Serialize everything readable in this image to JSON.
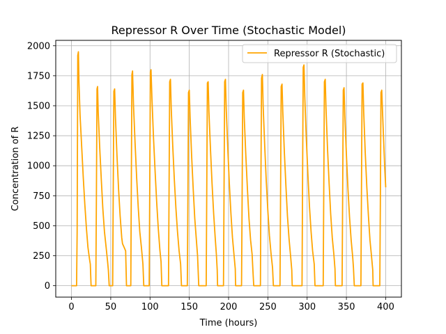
{
  "chart_data": {
    "type": "line",
    "title": "Repressor R Over Time (Stochastic Model)",
    "xlabel": "Time (hours)",
    "ylabel": "Concentration of R",
    "xlim": [
      -20,
      420
    ],
    "ylim": [
      -95,
      2045
    ],
    "xticks": [
      0,
      50,
      100,
      150,
      200,
      250,
      300,
      350,
      400
    ],
    "yticks": [
      0,
      250,
      500,
      750,
      1000,
      1250,
      1500,
      1750,
      2000
    ],
    "grid": true,
    "legend_position": "top-right",
    "series": [
      {
        "name": "Repressor R (Stochastic)",
        "color": "#ffa500",
        "points": [
          [
            0,
            0
          ],
          [
            6.5,
            0
          ],
          [
            7.2,
            450
          ],
          [
            8.0,
            1920
          ],
          [
            8.8,
            1950
          ],
          [
            9.5,
            1700
          ],
          [
            11,
            1420
          ],
          [
            13,
            1160
          ],
          [
            15,
            900
          ],
          [
            17,
            680
          ],
          [
            19,
            480
          ],
          [
            21,
            320
          ],
          [
            23,
            220
          ],
          [
            24,
            180
          ],
          [
            25,
            0
          ],
          [
            31,
            0
          ],
          [
            31.7,
            700
          ],
          [
            32.5,
            1640
          ],
          [
            33.2,
            1660
          ],
          [
            34,
            1450
          ],
          [
            36,
            1150
          ],
          [
            38,
            880
          ],
          [
            40,
            640
          ],
          [
            42,
            450
          ],
          [
            44,
            330
          ],
          [
            46,
            200
          ],
          [
            47,
            130
          ],
          [
            48,
            0
          ],
          [
            52.5,
            0
          ],
          [
            53.2,
            800
          ],
          [
            54,
            1620
          ],
          [
            55,
            1640
          ],
          [
            56,
            1400
          ],
          [
            58,
            1080
          ],
          [
            60,
            800
          ],
          [
            62,
            580
          ],
          [
            64,
            400
          ],
          [
            65,
            350
          ],
          [
            67,
            320
          ],
          [
            69,
            290
          ],
          [
            70,
            0
          ],
          [
            75.5,
            0
          ],
          [
            76.2,
            800
          ],
          [
            77,
            1760
          ],
          [
            77.8,
            1790
          ],
          [
            79,
            1500
          ],
          [
            81,
            1180
          ],
          [
            83,
            900
          ],
          [
            85,
            650
          ],
          [
            87,
            450
          ],
          [
            89,
            320
          ],
          [
            91,
            180
          ],
          [
            92,
            0
          ],
          [
            99,
            0
          ],
          [
            99.7,
            850
          ],
          [
            100.5,
            1780
          ],
          [
            101.3,
            1800
          ],
          [
            102.5,
            1550
          ],
          [
            104.5,
            1230
          ],
          [
            106.5,
            950
          ],
          [
            108.5,
            690
          ],
          [
            110.5,
            480
          ],
          [
            112.5,
            300
          ],
          [
            114,
            200
          ],
          [
            115,
            0
          ],
          [
            123.5,
            0
          ],
          [
            124.2,
            800
          ],
          [
            125,
            1700
          ],
          [
            126,
            1720
          ],
          [
            127,
            1480
          ],
          [
            129,
            1150
          ],
          [
            131,
            880
          ],
          [
            133,
            640
          ],
          [
            135,
            450
          ],
          [
            137,
            290
          ],
          [
            139,
            180
          ],
          [
            140,
            0
          ],
          [
            147.5,
            0
          ],
          [
            148.2,
            700
          ],
          [
            149,
            1610
          ],
          [
            150,
            1630
          ],
          [
            151,
            1400
          ],
          [
            153,
            1080
          ],
          [
            155,
            800
          ],
          [
            157,
            560
          ],
          [
            159,
            380
          ],
          [
            160.5,
            250
          ],
          [
            162,
            0
          ],
          [
            171.5,
            0
          ],
          [
            172.2,
            800
          ],
          [
            173,
            1690
          ],
          [
            174,
            1700
          ],
          [
            175,
            1450
          ],
          [
            177,
            1130
          ],
          [
            179,
            850
          ],
          [
            181,
            600
          ],
          [
            183,
            400
          ],
          [
            184.5,
            260
          ],
          [
            185.5,
            130
          ],
          [
            186,
            0
          ],
          [
            193.5,
            0
          ],
          [
            194.2,
            800
          ],
          [
            195,
            1700
          ],
          [
            196,
            1720
          ],
          [
            197,
            1480
          ],
          [
            199,
            1140
          ],
          [
            201,
            850
          ],
          [
            203,
            600
          ],
          [
            205,
            400
          ],
          [
            207,
            250
          ],
          [
            208.5,
            140
          ],
          [
            209,
            0
          ],
          [
            216.5,
            0
          ],
          [
            217.2,
            700
          ],
          [
            218,
            1610
          ],
          [
            219,
            1630
          ],
          [
            220,
            1400
          ],
          [
            222,
            1080
          ],
          [
            224,
            800
          ],
          [
            226,
            560
          ],
          [
            228,
            380
          ],
          [
            230,
            260
          ],
          [
            231,
            130
          ],
          [
            232,
            0
          ],
          [
            240.5,
            0
          ],
          [
            241.2,
            850
          ],
          [
            242,
            1730
          ],
          [
            243,
            1760
          ],
          [
            244,
            1500
          ],
          [
            246,
            1160
          ],
          [
            248,
            870
          ],
          [
            250,
            620
          ],
          [
            252,
            420
          ],
          [
            254,
            270
          ],
          [
            256,
            150
          ],
          [
            257,
            0
          ],
          [
            265.5,
            0
          ],
          [
            266.2,
            750
          ],
          [
            267,
            1660
          ],
          [
            268,
            1680
          ],
          [
            269,
            1450
          ],
          [
            271,
            1120
          ],
          [
            273,
            830
          ],
          [
            275,
            580
          ],
          [
            277,
            390
          ],
          [
            279,
            240
          ],
          [
            280.5,
            130
          ],
          [
            281,
            0
          ],
          [
            293.5,
            0
          ],
          [
            294.2,
            900
          ],
          [
            295,
            1820
          ],
          [
            296,
            1840
          ],
          [
            297,
            1580
          ],
          [
            299,
            1220
          ],
          [
            301,
            920
          ],
          [
            303,
            660
          ],
          [
            305,
            450
          ],
          [
            307,
            290
          ],
          [
            309,
            180
          ],
          [
            310,
            0
          ],
          [
            320.5,
            0
          ],
          [
            321.2,
            800
          ],
          [
            322,
            1700
          ],
          [
            323,
            1720
          ],
          [
            324,
            1480
          ],
          [
            326,
            1140
          ],
          [
            328,
            850
          ],
          [
            330,
            600
          ],
          [
            332,
            400
          ],
          [
            334,
            260
          ],
          [
            335.5,
            140
          ],
          [
            336,
            0
          ],
          [
            344.5,
            0
          ],
          [
            345.2,
            750
          ],
          [
            346,
            1630
          ],
          [
            347,
            1650
          ],
          [
            348,
            1420
          ],
          [
            350,
            1090
          ],
          [
            352,
            810
          ],
          [
            354,
            570
          ],
          [
            356,
            380
          ],
          [
            358,
            240
          ],
          [
            359,
            150
          ],
          [
            360,
            0
          ],
          [
            368.5,
            0
          ],
          [
            369.2,
            800
          ],
          [
            370,
            1680
          ],
          [
            371,
            1690
          ],
          [
            372,
            1450
          ],
          [
            374,
            1110
          ],
          [
            376,
            820
          ],
          [
            378,
            580
          ],
          [
            380,
            380
          ],
          [
            382,
            240
          ],
          [
            383.5,
            130
          ],
          [
            384,
            0
          ],
          [
            392.5,
            0
          ],
          [
            393.2,
            700
          ],
          [
            394,
            1610
          ],
          [
            395,
            1630
          ],
          [
            396,
            1450
          ],
          [
            397.5,
            1200
          ],
          [
            398.8,
            980
          ],
          [
            400,
            820
          ]
        ]
      }
    ]
  }
}
